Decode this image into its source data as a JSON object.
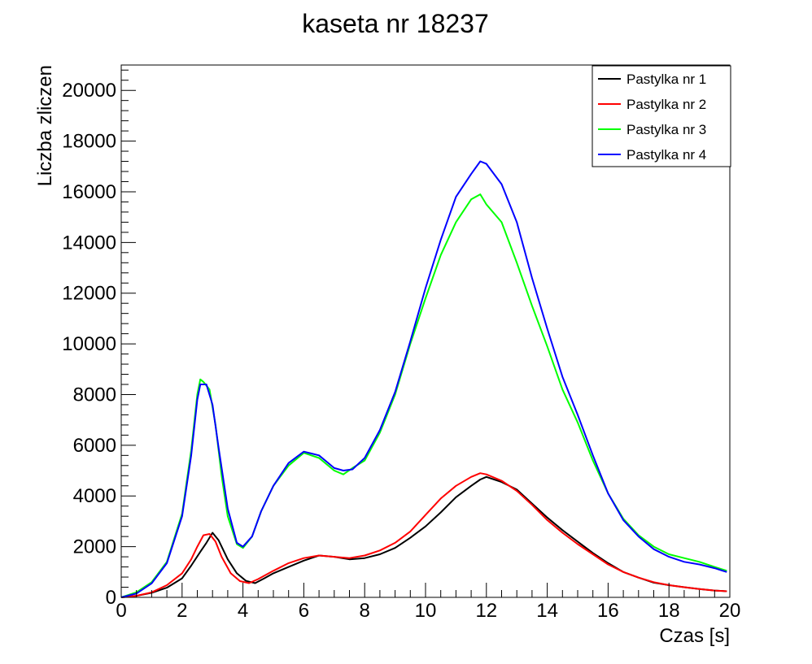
{
  "chart_data": {
    "type": "line",
    "title": "kaseta nr 18237",
    "xlabel": "Czas [s]",
    "ylabel": "Liczba zliczen",
    "xlim": [
      0,
      20
    ],
    "ylim": [
      0,
      21000
    ],
    "x_ticks": [
      0,
      2,
      4,
      6,
      8,
      10,
      12,
      14,
      16,
      18,
      20
    ],
    "y_ticks": [
      0,
      2000,
      4000,
      6000,
      8000,
      10000,
      12000,
      14000,
      16000,
      18000,
      20000
    ],
    "grid": false,
    "legend_position": "top-right",
    "series": [
      {
        "name": "Pastylka nr 1",
        "color": "#000000",
        "points": [
          [
            0,
            0
          ],
          [
            0.5,
            60
          ],
          [
            1,
            180
          ],
          [
            1.5,
            380
          ],
          [
            2,
            750
          ],
          [
            2.3,
            1250
          ],
          [
            2.6,
            1800
          ],
          [
            2.8,
            2150
          ],
          [
            3.0,
            2550
          ],
          [
            3.2,
            2250
          ],
          [
            3.5,
            1500
          ],
          [
            3.8,
            950
          ],
          [
            4.1,
            650
          ],
          [
            4.4,
            560
          ],
          [
            4.7,
            750
          ],
          [
            5,
            950
          ],
          [
            5.5,
            1200
          ],
          [
            6,
            1450
          ],
          [
            6.5,
            1650
          ],
          [
            7,
            1600
          ],
          [
            7.5,
            1500
          ],
          [
            8,
            1550
          ],
          [
            8.5,
            1700
          ],
          [
            9,
            1950
          ],
          [
            9.5,
            2350
          ],
          [
            10,
            2800
          ],
          [
            10.5,
            3350
          ],
          [
            11,
            3950
          ],
          [
            11.5,
            4400
          ],
          [
            11.8,
            4650
          ],
          [
            12,
            4750
          ],
          [
            12.5,
            4550
          ],
          [
            13,
            4250
          ],
          [
            13.5,
            3700
          ],
          [
            14,
            3150
          ],
          [
            14.5,
            2650
          ],
          [
            15,
            2200
          ],
          [
            15.5,
            1750
          ],
          [
            16,
            1350
          ],
          [
            16.5,
            1000
          ],
          [
            17,
            780
          ],
          [
            17.5,
            580
          ],
          [
            18,
            480
          ],
          [
            18.5,
            400
          ],
          [
            19,
            330
          ],
          [
            19.5,
            270
          ],
          [
            19.9,
            240
          ]
        ]
      },
      {
        "name": "Pastylka nr 2",
        "color": "#ff0000",
        "points": [
          [
            0,
            0
          ],
          [
            0.5,
            60
          ],
          [
            1,
            200
          ],
          [
            1.5,
            480
          ],
          [
            2,
            950
          ],
          [
            2.3,
            1500
          ],
          [
            2.5,
            2000
          ],
          [
            2.7,
            2450
          ],
          [
            2.9,
            2500
          ],
          [
            3.1,
            2200
          ],
          [
            3.3,
            1600
          ],
          [
            3.6,
            950
          ],
          [
            3.9,
            640
          ],
          [
            4.2,
            560
          ],
          [
            4.5,
            720
          ],
          [
            5,
            1050
          ],
          [
            5.5,
            1350
          ],
          [
            6,
            1550
          ],
          [
            6.5,
            1650
          ],
          [
            7,
            1600
          ],
          [
            7.5,
            1550
          ],
          [
            8,
            1650
          ],
          [
            8.5,
            1850
          ],
          [
            9,
            2150
          ],
          [
            9.5,
            2600
          ],
          [
            10,
            3250
          ],
          [
            10.5,
            3900
          ],
          [
            11,
            4400
          ],
          [
            11.5,
            4750
          ],
          [
            11.8,
            4900
          ],
          [
            12,
            4850
          ],
          [
            12.5,
            4600
          ],
          [
            13,
            4200
          ],
          [
            13.5,
            3650
          ],
          [
            14,
            3050
          ],
          [
            14.5,
            2550
          ],
          [
            15,
            2100
          ],
          [
            15.5,
            1700
          ],
          [
            16,
            1300
          ],
          [
            16.5,
            1000
          ],
          [
            17,
            780
          ],
          [
            17.5,
            600
          ],
          [
            18,
            480
          ],
          [
            18.5,
            400
          ],
          [
            19,
            330
          ],
          [
            19.5,
            270
          ],
          [
            19.9,
            240
          ]
        ]
      },
      {
        "name": "Pastylka nr 3",
        "color": "#00ff00",
        "points": [
          [
            0,
            0
          ],
          [
            0.5,
            200
          ],
          [
            1,
            600
          ],
          [
            1.5,
            1400
          ],
          [
            2,
            3300
          ],
          [
            2.3,
            5800
          ],
          [
            2.5,
            8000
          ],
          [
            2.6,
            8600
          ],
          [
            2.7,
            8500
          ],
          [
            2.9,
            8200
          ],
          [
            3.1,
            6800
          ],
          [
            3.3,
            4800
          ],
          [
            3.5,
            3200
          ],
          [
            3.8,
            2100
          ],
          [
            4.0,
            1950
          ],
          [
            4.3,
            2400
          ],
          [
            4.6,
            3400
          ],
          [
            5,
            4400
          ],
          [
            5.5,
            5200
          ],
          [
            6,
            5700
          ],
          [
            6.5,
            5500
          ],
          [
            7,
            5000
          ],
          [
            7.3,
            4850
          ],
          [
            7.6,
            5100
          ],
          [
            8,
            5400
          ],
          [
            8.5,
            6500
          ],
          [
            9,
            8000
          ],
          [
            9.5,
            10000
          ],
          [
            10,
            11800
          ],
          [
            10.5,
            13500
          ],
          [
            11,
            14800
          ],
          [
            11.5,
            15700
          ],
          [
            11.8,
            15900
          ],
          [
            12,
            15500
          ],
          [
            12.5,
            14800
          ],
          [
            13,
            13200
          ],
          [
            13.5,
            11500
          ],
          [
            14,
            9900
          ],
          [
            14.5,
            8200
          ],
          [
            15,
            6900
          ],
          [
            15.5,
            5400
          ],
          [
            16,
            4100
          ],
          [
            16.5,
            3100
          ],
          [
            17,
            2450
          ],
          [
            17.5,
            2000
          ],
          [
            18,
            1700
          ],
          [
            18.5,
            1550
          ],
          [
            19,
            1400
          ],
          [
            19.5,
            1200
          ],
          [
            19.9,
            1050
          ]
        ]
      },
      {
        "name": "Pastylka nr 4",
        "color": "#0000ff",
        "points": [
          [
            0,
            0
          ],
          [
            0.5,
            150
          ],
          [
            1,
            550
          ],
          [
            1.5,
            1350
          ],
          [
            2,
            3200
          ],
          [
            2.3,
            5600
          ],
          [
            2.5,
            7800
          ],
          [
            2.6,
            8400
          ],
          [
            2.8,
            8400
          ],
          [
            3.0,
            7600
          ],
          [
            3.2,
            5900
          ],
          [
            3.5,
            3500
          ],
          [
            3.8,
            2150
          ],
          [
            4.0,
            2000
          ],
          [
            4.3,
            2400
          ],
          [
            4.6,
            3400
          ],
          [
            5,
            4400
          ],
          [
            5.5,
            5300
          ],
          [
            6,
            5750
          ],
          [
            6.5,
            5600
          ],
          [
            7,
            5100
          ],
          [
            7.3,
            5000
          ],
          [
            7.6,
            5050
          ],
          [
            8,
            5500
          ],
          [
            8.5,
            6600
          ],
          [
            9,
            8100
          ],
          [
            9.5,
            10100
          ],
          [
            10,
            12200
          ],
          [
            10.5,
            14100
          ],
          [
            11,
            15800
          ],
          [
            11.5,
            16700
          ],
          [
            11.8,
            17200
          ],
          [
            12,
            17100
          ],
          [
            12.5,
            16300
          ],
          [
            13,
            14800
          ],
          [
            13.5,
            12600
          ],
          [
            14,
            10600
          ],
          [
            14.5,
            8700
          ],
          [
            15,
            7200
          ],
          [
            15.5,
            5600
          ],
          [
            16,
            4100
          ],
          [
            16.5,
            3050
          ],
          [
            17,
            2400
          ],
          [
            17.5,
            1900
          ],
          [
            18,
            1600
          ],
          [
            18.5,
            1400
          ],
          [
            19,
            1300
          ],
          [
            19.5,
            1150
          ],
          [
            19.9,
            1000
          ]
        ]
      }
    ]
  }
}
